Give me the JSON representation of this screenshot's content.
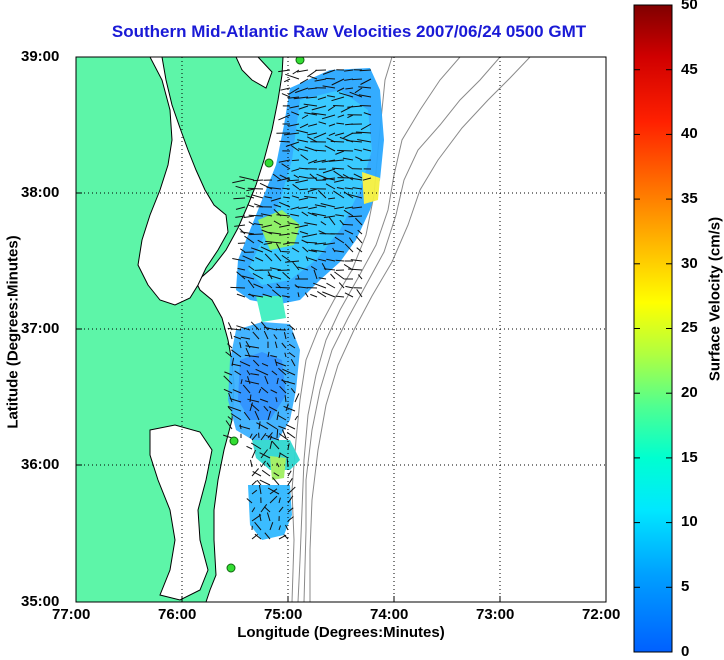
{
  "title": "Southern Mid-Atlantic Raw Velocities 2007/06/24 0500 GMT",
  "axes": {
    "xlabel": "Longitude (Degrees:Minutes)",
    "ylabel": "Latitude (Degrees:Minutes)",
    "x_ticks": [
      "77:00",
      "76:00",
      "75:00",
      "74:00",
      "73:00",
      "72:00"
    ],
    "y_ticks": [
      "39:00",
      "38:00",
      "37:00",
      "36:00",
      "35:00"
    ]
  },
  "colorbar": {
    "label": "Surface Velocity (cm/s)",
    "ticks": [
      "50",
      "45",
      "40",
      "35",
      "30",
      "25",
      "20",
      "15",
      "10",
      "5",
      "0"
    ],
    "range": [
      0,
      50
    ]
  },
  "colors": {
    "land": "#5df5a8",
    "title": "#1a1ad6",
    "arrow": "#111111",
    "bathymetry": "#8a8a8a",
    "station": "#33dd33"
  },
  "map_extent": {
    "lon": [
      -77,
      -72
    ],
    "lat": [
      35,
      39
    ]
  }
}
